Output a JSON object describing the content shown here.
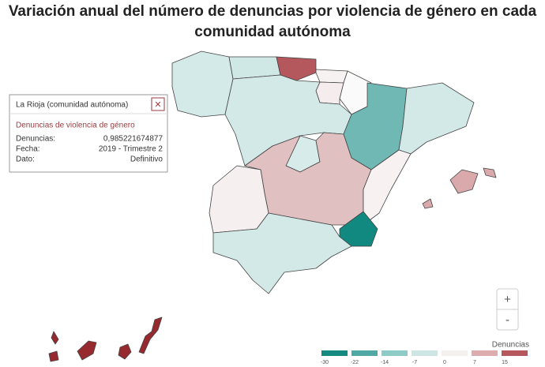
{
  "title": "Variación anual del número de denuncias por violencia de género en cada comunidad autónoma",
  "tooltip": {
    "title": "La Rioja (comunidad autónoma)",
    "close": "✕",
    "subtitle": "Denuncias de violencia de género",
    "rows": [
      [
        "Denuncias:",
        "0,985221674877"
      ],
      [
        "Fecha:",
        "2019 - Trimestre 2"
      ],
      [
        "Dato:",
        "Definitivo"
      ]
    ]
  },
  "zoom": {
    "in": "+",
    "out": "-"
  },
  "legend": {
    "title": "Denuncias",
    "ticks": [
      -30,
      -22,
      -14,
      -7,
      0,
      7,
      15
    ],
    "colors": [
      "#14897f",
      "#4fa8a4",
      "#8ecac6",
      "#cde6e4",
      "#f6f1f1",
      "#dcacaf",
      "#b5575d"
    ]
  },
  "region_colors": [
    "#d4eae8",
    "#cfe7e5",
    "#b5585e",
    "#f7f2f2",
    "#fbfafa",
    "#f5eded",
    "#d3e9e8",
    "#6fb8b4",
    "#d3e9e8",
    "#d7ecea",
    "#e1c0c2",
    "#f5efef",
    "#f7f1f1",
    "#118880",
    "#d2e9e7",
    "#d9a9ac",
    "#d9a9ac",
    "#d9a9ac",
    "#962a2e",
    "#962a2e",
    "#962a2e",
    "#962a2e",
    "#962a2e"
  ]
}
